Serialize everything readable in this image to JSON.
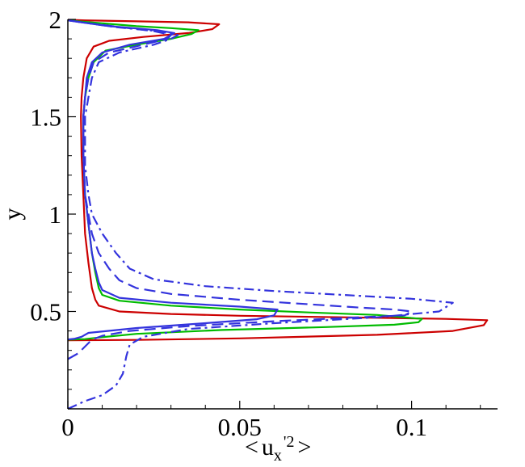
{
  "chart_data": {
    "type": "line",
    "title": "",
    "xlabel": {
      "open": "<",
      "base": "u",
      "sub": "x",
      "sup": "'2",
      "close": ">"
    },
    "ylabel": "y",
    "xlim": [
      0,
      0.125
    ],
    "ylim": [
      0,
      2
    ],
    "x_ticks": [
      {
        "value": 0,
        "label": "0"
      },
      {
        "value": 0.05,
        "label": "0.05"
      },
      {
        "value": 0.1,
        "label": "0.1"
      }
    ],
    "y_ticks": [
      {
        "value": 0.5,
        "label": "0.5"
      },
      {
        "value": 1,
        "label": "1"
      },
      {
        "value": 1.5,
        "label": "1.5"
      },
      {
        "value": 2,
        "label": "2"
      }
    ],
    "grid": false,
    "legend": "none",
    "series": [
      {
        "color": "#cc0000",
        "dash": "solid",
        "points": [
          [
            0,
            0.352
          ],
          [
            0.02,
            0.354
          ],
          [
            0.05,
            0.362
          ],
          [
            0.09,
            0.38
          ],
          [
            0.112,
            0.4
          ],
          [
            0.121,
            0.43
          ],
          [
            0.122,
            0.455
          ],
          [
            0.11,
            0.462
          ],
          [
            0.08,
            0.47
          ],
          [
            0.05,
            0.478
          ],
          [
            0.03,
            0.487
          ],
          [
            0.015,
            0.5
          ],
          [
            0.009,
            0.53
          ],
          [
            0.008,
            0.56
          ],
          [
            0.007,
            0.62
          ],
          [
            0.006,
            0.75
          ],
          [
            0.005,
            0.9
          ],
          [
            0.0045,
            1.1
          ],
          [
            0.004,
            1.3
          ],
          [
            0.0038,
            1.5
          ],
          [
            0.004,
            1.6
          ],
          [
            0.0045,
            1.7
          ],
          [
            0.0055,
            1.8
          ],
          [
            0.0075,
            1.86
          ],
          [
            0.012,
            1.89
          ],
          [
            0.022,
            1.91
          ],
          [
            0.035,
            1.93
          ],
          [
            0.042,
            1.95
          ],
          [
            0.044,
            1.975
          ],
          [
            0.035,
            1.985
          ],
          [
            0.02,
            1.99
          ],
          [
            0.005,
            1.995
          ],
          [
            0,
            1.998
          ]
        ]
      },
      {
        "color": "#00bb00",
        "dash": "solid",
        "points": [
          [
            0,
            0.355
          ],
          [
            0.005,
            0.358
          ],
          [
            0.01,
            0.368
          ],
          [
            0.02,
            0.385
          ],
          [
            0.045,
            0.405
          ],
          [
            0.075,
            0.42
          ],
          [
            0.095,
            0.432
          ],
          [
            0.102,
            0.445
          ],
          [
            0.103,
            0.462
          ],
          [
            0.09,
            0.482
          ],
          [
            0.07,
            0.495
          ],
          [
            0.05,
            0.51
          ],
          [
            0.03,
            0.53
          ],
          [
            0.015,
            0.555
          ],
          [
            0.01,
            0.585
          ],
          [
            0.009,
            0.62
          ],
          [
            0.008,
            0.7
          ],
          [
            0.007,
            0.8
          ],
          [
            0.006,
            0.95
          ],
          [
            0.005,
            1.1
          ],
          [
            0.0045,
            1.3
          ],
          [
            0.0045,
            1.5
          ],
          [
            0.005,
            1.6
          ],
          [
            0.006,
            1.7
          ],
          [
            0.0075,
            1.78
          ],
          [
            0.011,
            1.84
          ],
          [
            0.02,
            1.87
          ],
          [
            0.03,
            1.9
          ],
          [
            0.036,
            1.925
          ],
          [
            0.038,
            1.945
          ],
          [
            0.03,
            1.955
          ],
          [
            0.02,
            1.965
          ],
          [
            0.01,
            1.98
          ],
          [
            0.003,
            1.99
          ],
          [
            0,
            1.996
          ]
        ]
      },
      {
        "color": "#3333dd",
        "dash": "solid",
        "points": [
          [
            0,
            0.356
          ],
          [
            0.002,
            0.36
          ],
          [
            0.004,
            0.37
          ],
          [
            0.006,
            0.39
          ],
          [
            0.02,
            0.415
          ],
          [
            0.04,
            0.44
          ],
          [
            0.055,
            0.46
          ],
          [
            0.06,
            0.48
          ],
          [
            0.061,
            0.51
          ],
          [
            0.05,
            0.525
          ],
          [
            0.03,
            0.545
          ],
          [
            0.015,
            0.57
          ],
          [
            0.01,
            0.61
          ],
          [
            0.009,
            0.65
          ],
          [
            0.008,
            0.72
          ],
          [
            0.007,
            0.8
          ],
          [
            0.006,
            0.95
          ],
          [
            0.005,
            1.1
          ],
          [
            0.0045,
            1.3
          ],
          [
            0.0045,
            1.5
          ],
          [
            0.005,
            1.6
          ],
          [
            0.0055,
            1.7
          ],
          [
            0.007,
            1.78
          ],
          [
            0.01,
            1.83
          ],
          [
            0.018,
            1.87
          ],
          [
            0.028,
            1.9
          ],
          [
            0.031,
            1.93
          ],
          [
            0.026,
            1.945
          ],
          [
            0.012,
            1.965
          ],
          [
            0.004,
            1.985
          ],
          [
            0,
            1.995
          ]
        ]
      },
      {
        "color": "#3333dd",
        "dash": "dashed",
        "points": [
          [
            0,
            0.255
          ],
          [
            0.003,
            0.285
          ],
          [
            0.005,
            0.32
          ],
          [
            0.007,
            0.355
          ],
          [
            0.01,
            0.375
          ],
          [
            0.018,
            0.4
          ],
          [
            0.035,
            0.425
          ],
          [
            0.06,
            0.45
          ],
          [
            0.085,
            0.47
          ],
          [
            0.098,
            0.48
          ],
          [
            0.1,
            0.5
          ],
          [
            0.095,
            0.51
          ],
          [
            0.085,
            0.52
          ],
          [
            0.05,
            0.56
          ],
          [
            0.03,
            0.59
          ],
          [
            0.02,
            0.62
          ],
          [
            0.015,
            0.66
          ],
          [
            0.012,
            0.72
          ],
          [
            0.009,
            0.8
          ],
          [
            0.007,
            0.9
          ],
          [
            0.006,
            1.0
          ],
          [
            0.005,
            1.1
          ],
          [
            0.0045,
            1.3
          ],
          [
            0.0045,
            1.5
          ],
          [
            0.005,
            1.6
          ],
          [
            0.006,
            1.7
          ],
          [
            0.0075,
            1.78
          ],
          [
            0.012,
            1.83
          ],
          [
            0.022,
            1.87
          ],
          [
            0.029,
            1.9
          ],
          [
            0.03,
            1.92
          ],
          [
            0.025,
            1.94
          ],
          [
            0.013,
            1.965
          ],
          [
            0.004,
            1.985
          ],
          [
            0,
            1.995
          ]
        ]
      },
      {
        "color": "#3333dd",
        "dash": "dashdot",
        "points": [
          [
            0,
            0.0
          ],
          [
            0.005,
            0.04
          ],
          [
            0.01,
            0.07
          ],
          [
            0.014,
            0.12
          ],
          [
            0.016,
            0.18
          ],
          [
            0.017,
            0.27
          ],
          [
            0.018,
            0.33
          ],
          [
            0.022,
            0.37
          ],
          [
            0.035,
            0.41
          ],
          [
            0.06,
            0.44
          ],
          [
            0.09,
            0.47
          ],
          [
            0.108,
            0.5
          ],
          [
            0.112,
            0.545
          ],
          [
            0.1,
            0.565
          ],
          [
            0.08,
            0.585
          ],
          [
            0.06,
            0.605
          ],
          [
            0.04,
            0.63
          ],
          [
            0.025,
            0.665
          ],
          [
            0.018,
            0.72
          ],
          [
            0.014,
            0.8
          ],
          [
            0.01,
            0.9
          ],
          [
            0.007,
            1.0
          ],
          [
            0.006,
            1.1
          ],
          [
            0.005,
            1.25
          ],
          [
            0.005,
            1.4
          ],
          [
            0.005,
            1.5
          ],
          [
            0.006,
            1.6
          ],
          [
            0.007,
            1.7
          ],
          [
            0.009,
            1.78
          ],
          [
            0.015,
            1.83
          ],
          [
            0.025,
            1.87
          ],
          [
            0.03,
            1.9
          ],
          [
            0.032,
            1.92
          ],
          [
            0.026,
            1.94
          ],
          [
            0.014,
            1.96
          ],
          [
            0.006,
            1.98
          ],
          [
            0,
            1.995
          ]
        ]
      }
    ]
  }
}
